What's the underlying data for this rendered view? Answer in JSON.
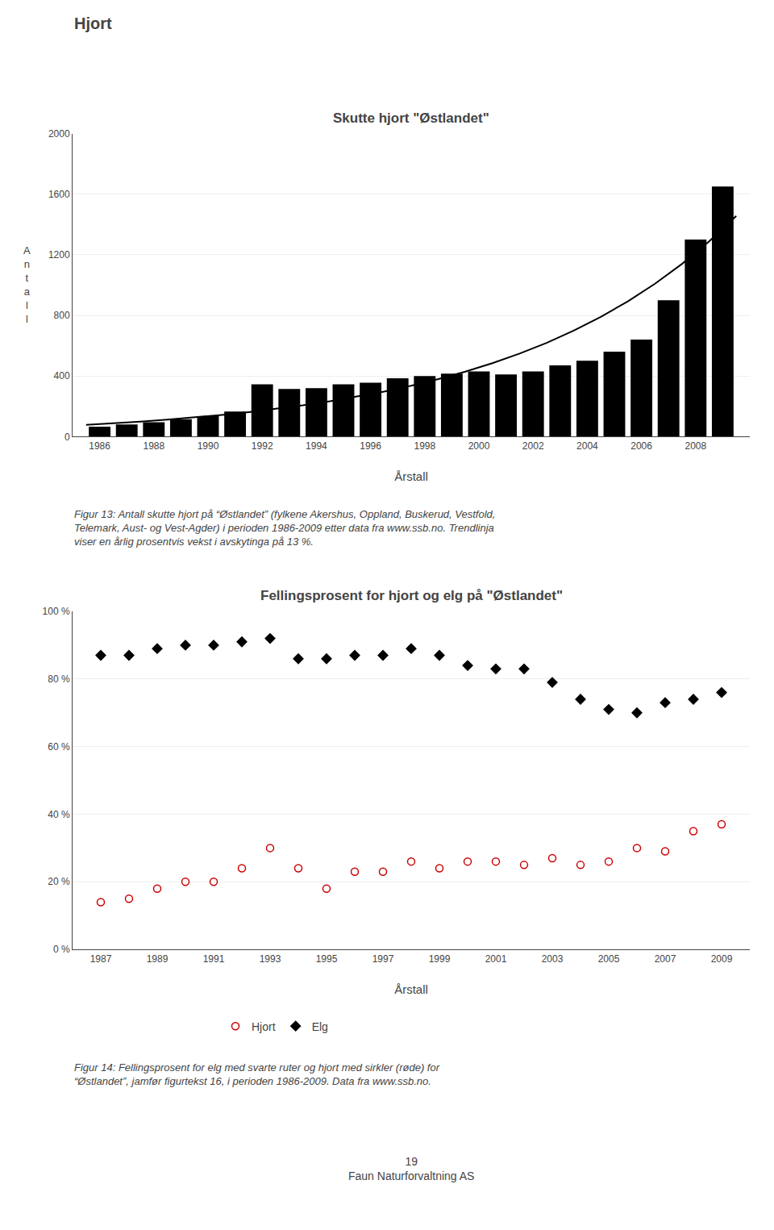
{
  "page_title": "Hjort",
  "chart_data": [
    {
      "type": "bar",
      "title": "Skutte hjort \"Østlandet\"",
      "xlabel": "Årstall",
      "ylabel": "A\nn\nt\na\nl\nl",
      "series": [
        {
          "type": "bar",
          "color": "#000000",
          "x": [
            1986,
            1987,
            1988,
            1989,
            1990,
            1991,
            1992,
            1993,
            1994,
            1995,
            1996,
            1997,
            1998,
            1999,
            2000,
            2001,
            2002,
            2003,
            2004,
            2005,
            2006,
            2007,
            2008,
            2009
          ],
          "values": [
            65,
            80,
            95,
            115,
            135,
            165,
            345,
            315,
            320,
            345,
            355,
            385,
            400,
            415,
            430,
            410,
            430,
            470,
            500,
            560,
            640,
            900,
            1300,
            1650
          ]
        },
        {
          "type": "line",
          "color": "#000000",
          "x": [
            1985.5,
            1986.5,
            1987.5,
            1988.5,
            1989.5,
            1990.5,
            1991.5,
            1992.5,
            1993.5,
            1994.5,
            1995.5,
            1996.5,
            1997.5,
            1998.5,
            1999.5,
            2000.5,
            2001.5,
            2002.5,
            2003.5,
            2004.5,
            2005.5,
            2006.5,
            2007.5,
            2008.5,
            2009.5
          ],
          "values": [
            77.49,
            87.56,
            98.94,
            111.8,
            126.34,
            142.76,
            161.32,
            182.29,
            205.99,
            232.77,
            263.03,
            297.23,
            335.86,
            379.53,
            428.87,
            484.62,
            547.62,
            618.81,
            699.25,
            790.16,
            892.88,
            1008.95,
            1140.11,
            1288.33,
            1455.81
          ]
        }
      ],
      "xlim": [
        1985,
        2010
      ],
      "xticks": [
        1986,
        1988,
        1990,
        1992,
        1994,
        1996,
        1998,
        2000,
        2002,
        2004,
        2006,
        2008
      ],
      "ylim": [
        0,
        2000
      ],
      "yticks": [
        0,
        400,
        800,
        1200,
        1600,
        2000
      ],
      "grid": "y",
      "caption": "Figur 13: Antall skutte hjort på “Østlandet” (fylkene Akershus, Oppland, Buskerud, Vestfold,\nTelemark, Aust- og Vest-Agder) i perioden 1986-2009 etter data fra www.ssb.no. Trendlinja\nviser en årlig prosentvis vekst i avskytinga på 13 %."
    },
    {
      "type": "scatter",
      "title": "Fellingsprosent for hjort og elg på \"Østlandet\"",
      "xlabel": "Årstall",
      "x": [
        1987,
        1988,
        1989,
        1990,
        1991,
        1992,
        1993,
        1994,
        1995,
        1996,
        1997,
        1998,
        1999,
        2000,
        2001,
        2002,
        2003,
        2004,
        2005,
        2006,
        2007,
        2008,
        2009
      ],
      "series": [
        {
          "name": "Hjort",
          "color": "#cc0000",
          "marker": "circle-open",
          "values": [
            14,
            15,
            18,
            20,
            20,
            24,
            30,
            24,
            18,
            23,
            23,
            26,
            24,
            26,
            26,
            25,
            27,
            25,
            26,
            30,
            29,
            35,
            37
          ]
        },
        {
          "name": "Elg",
          "color": "#000000",
          "marker": "diamond",
          "values": [
            87,
            87,
            89,
            90,
            90,
            91,
            92,
            86,
            86,
            87,
            87,
            89,
            87,
            84,
            83,
            83,
            79,
            74,
            71,
            70,
            73,
            74,
            76
          ]
        }
      ],
      "xlim": [
        1986,
        2010
      ],
      "xticks": [
        1987,
        1989,
        1991,
        1993,
        1995,
        1997,
        1999,
        2001,
        2003,
        2005,
        2007,
        2009
      ],
      "ylim": [
        0,
        100
      ],
      "yticks": [
        {
          "value": 0,
          "label": "0 %"
        },
        {
          "value": 20,
          "label": "20 %"
        },
        {
          "value": 40,
          "label": "40 %"
        },
        {
          "value": 60,
          "label": "60 %"
        },
        {
          "value": 80,
          "label": "80 %"
        },
        {
          "value": 100,
          "label": "100 %"
        }
      ],
      "grid": "y",
      "legend": "bottom",
      "caption": "Figur 14: Fellingsprosent for elg med svarte ruter og hjort med sirkler (røde) for\n“Østlandet”, jamfør figurtekst 16, i perioden 1986-2009. Data fra www.ssb.no."
    }
  ],
  "footer": [
    "19",
    "Faun Naturforvaltning AS"
  ]
}
